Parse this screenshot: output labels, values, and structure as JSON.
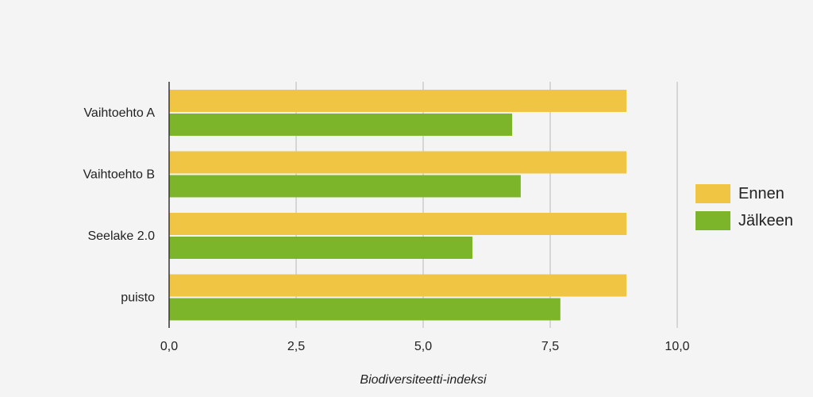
{
  "chart_data": {
    "type": "bar",
    "orientation": "horizontal",
    "categories": [
      "Vaihtoehto A",
      "Vaihtoehto B",
      "Seelake 2.0",
      "puisto"
    ],
    "series": [
      {
        "name": "Ennen",
        "color": "#f0c544",
        "values": [
          9.0,
          9.0,
          9.0,
          9.0
        ]
      },
      {
        "name": "Jälkeen",
        "color": "#7db52a",
        "values": [
          6.75,
          6.92,
          5.97,
          7.7
        ]
      }
    ],
    "title": "",
    "xlabel": "Biodiversiteetti-indeksi",
    "ylabel": "",
    "xlim": [
      0,
      10
    ],
    "xticks": [
      0,
      2.5,
      5,
      7.5,
      10
    ],
    "xtick_labels": [
      "0,0",
      "2,5",
      "5,0",
      "7,5",
      "10,0"
    ],
    "grid": true,
    "legend_position": "right"
  }
}
